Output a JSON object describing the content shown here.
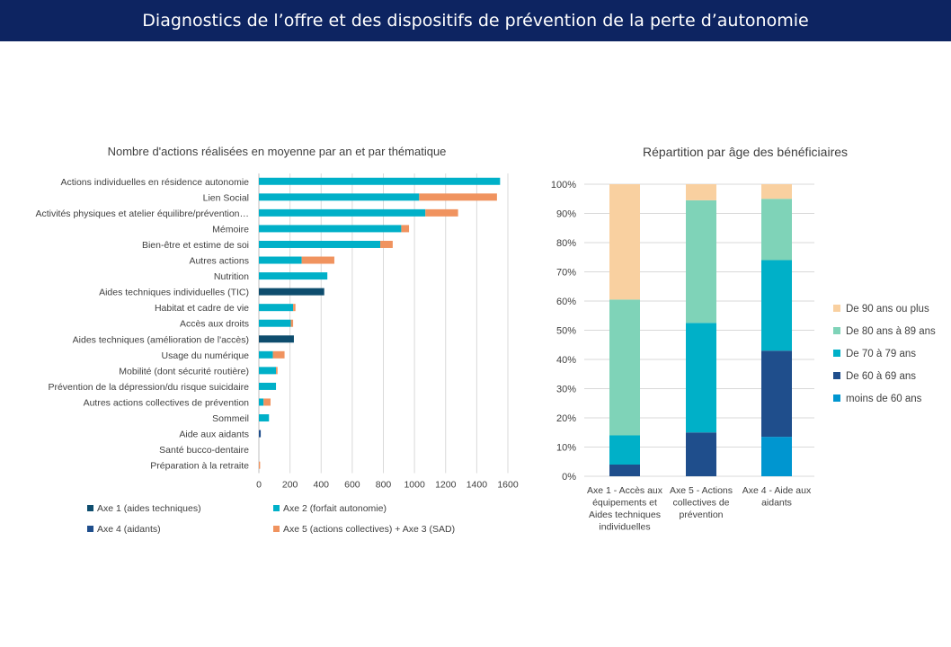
{
  "header": {
    "title": "Diagnostics de l’offre et des dispositifs de prévention de la perte d’autonomie"
  },
  "chart_data": [
    {
      "type": "bar",
      "orientation": "horizontal",
      "stacked": true,
      "title": "Nombre  d'actions réalisées en moyenne par an et par thématique",
      "categories": [
        "Actions individuelles en résidence autonomie",
        "Lien Social",
        "Activités physiques et atelier équilibre/prévention…",
        "Mémoire",
        "Bien-être et estime de soi",
        "Autres actions",
        "Nutrition",
        "Aides techniques individuelles (TIC)",
        "Habitat et cadre de vie",
        "Accès aux droits",
        "Aides techniques (amélioration de l'accès)",
        "Usage du numérique",
        "Mobilité (dont sécurité routière)",
        "Prévention de la dépression/du risque suicidaire",
        "Autres actions collectives de prévention",
        "Sommeil",
        "Aide aux aidants",
        "Santé bucco-dentaire",
        "Préparation à la retraite"
      ],
      "series": [
        {
          "name": "Axe 1 (aides techniques)",
          "color": "#0e4d6e",
          "values": [
            0,
            0,
            0,
            0,
            0,
            0,
            0,
            420,
            0,
            0,
            225,
            0,
            0,
            0,
            0,
            0,
            0,
            0,
            0
          ]
        },
        {
          "name": "Axe 2 (forfait autonomie)",
          "color": "#00b0c8",
          "values": [
            1550,
            1030,
            1070,
            915,
            780,
            275,
            440,
            0,
            220,
            205,
            0,
            90,
            110,
            110,
            30,
            65,
            0,
            0,
            0
          ]
        },
        {
          "name": "Axe 4 (aidants)",
          "color": "#1f4e8c",
          "values": [
            0,
            0,
            0,
            0,
            0,
            0,
            0,
            0,
            0,
            0,
            0,
            0,
            0,
            0,
            0,
            0,
            12,
            0,
            0
          ]
        },
        {
          "name": "Axe 5 (actions collectives) + Axe 3 (SAD)",
          "color": "#f0935f",
          "values": [
            0,
            500,
            210,
            50,
            80,
            210,
            0,
            0,
            15,
            15,
            0,
            75,
            10,
            0,
            45,
            0,
            0,
            0,
            8
          ]
        }
      ],
      "xlim": [
        0,
        1600
      ],
      "xticks": [
        0,
        200,
        400,
        600,
        800,
        1000,
        1200,
        1400,
        1600
      ],
      "grid": true,
      "legend": "bottom"
    },
    {
      "type": "bar",
      "orientation": "vertical",
      "stacked": true,
      "percent": true,
      "title": "Répartition par âge des bénéficiaires",
      "categories": [
        "Axe 1 - Accès aux équipements et Aides techniques individuelles",
        "Axe 5 - Actions collectives de prévention",
        "Axe 4 - Aide aux aidants"
      ],
      "series": [
        {
          "name": "moins de 60 ans",
          "color": "#0096d0",
          "values": [
            0,
            0,
            13.5
          ]
        },
        {
          "name": "De 60 à 69 ans",
          "color": "#1f4e8c",
          "values": [
            4,
            15,
            29.5
          ]
        },
        {
          "name": "De 70 à 79 ans",
          "color": "#00b0c8",
          "values": [
            10,
            37.5,
            31
          ]
        },
        {
          "name": "De 80 ans à 89 ans",
          "color": "#7fd3b8",
          "values": [
            46.5,
            42,
            21
          ]
        },
        {
          "name": "De 90 ans ou plus",
          "color": "#f9d0a0",
          "values": [
            39.5,
            5.5,
            5
          ]
        }
      ],
      "ylim": [
        0,
        100
      ],
      "yticks": [
        "0%",
        "10%",
        "20%",
        "30%",
        "40%",
        "50%",
        "60%",
        "70%",
        "80%",
        "90%",
        "100%"
      ],
      "grid": true,
      "legend": "right"
    }
  ]
}
